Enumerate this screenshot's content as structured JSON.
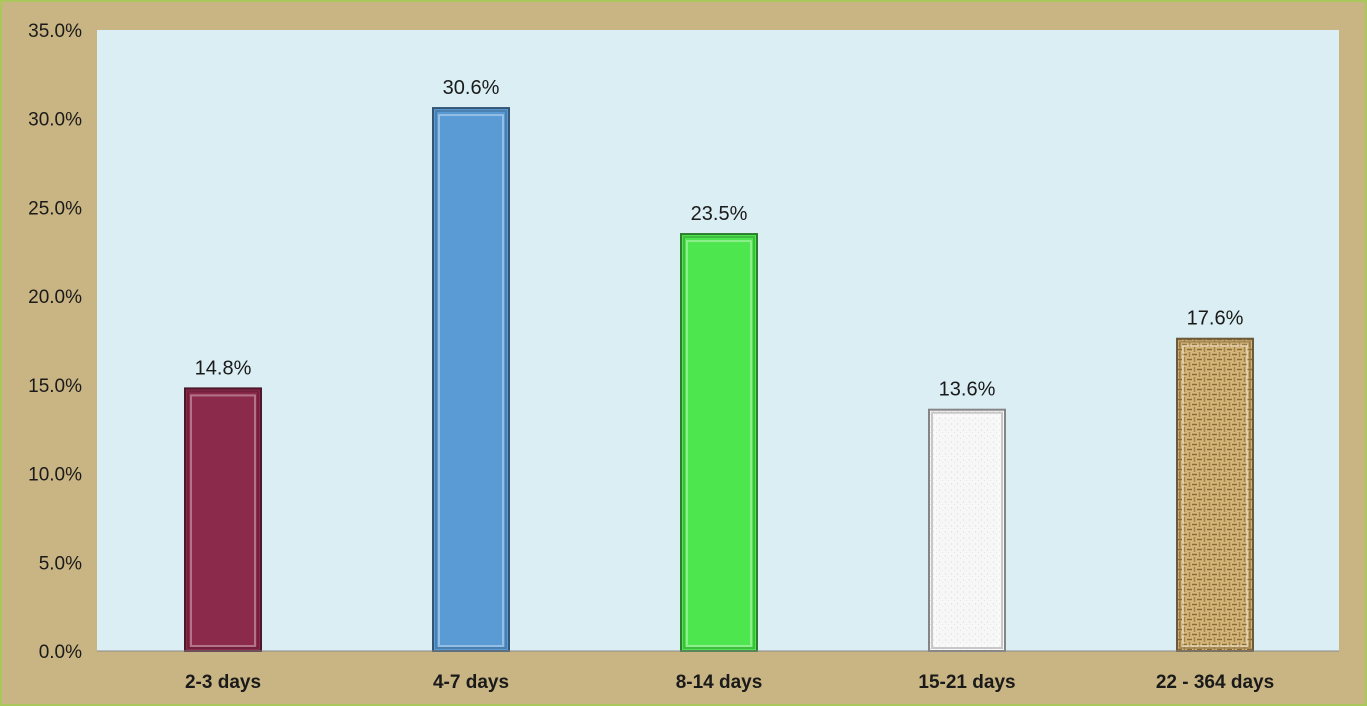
{
  "chart_data": {
    "type": "bar",
    "title": "",
    "xlabel": "",
    "ylabel": "",
    "categories": [
      "2-3 days",
      "4-7 days",
      "8-14 days",
      "15-21 days",
      "22 - 364 days"
    ],
    "values": [
      14.8,
      30.6,
      23.5,
      13.6,
      17.6
    ],
    "value_labels": [
      "14.8%",
      "30.6%",
      "23.5%",
      "13.6%",
      "17.6%"
    ],
    "ylim": [
      0,
      35
    ],
    "yticks": [
      0,
      5,
      10,
      15,
      20,
      25,
      30,
      35
    ],
    "ytick_labels": [
      "0.0%",
      "5.0%",
      "10.0%",
      "15.0%",
      "20.0%",
      "25.0%",
      "30.0%",
      "35.0%"
    ],
    "grid": false,
    "legend": "none",
    "bar_colors": [
      "#8b2a4a",
      "#5b9bd5",
      "#4ee64e",
      "#f2f2f2",
      "#c8a465"
    ],
    "bar_patterns": [
      "solid",
      "solid",
      "solid",
      "speckled",
      "woven"
    ],
    "plot_background": "#daeef3",
    "outer_background": "#c9b583"
  }
}
